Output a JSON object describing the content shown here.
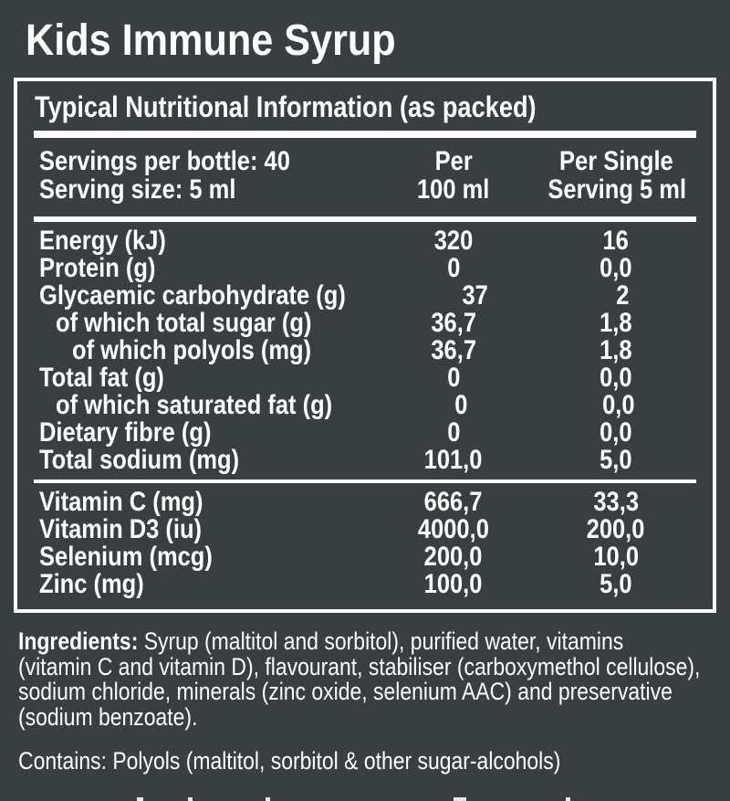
{
  "colors": {
    "background": "#393e41",
    "text": "#fdfdfd"
  },
  "title": "Kids Immune Syrup",
  "panel": {
    "header": "Typical Nutritional Information (as packed)",
    "serving": {
      "left_line1": "Servings per bottle: 40",
      "left_line2": "Serving size: 5 ml",
      "col1_line1": "Per",
      "col1_line2": "100 ml",
      "col2_line1": "Per Single",
      "col2_line2": "Serving 5 ml"
    },
    "nutrient_rows": [
      {
        "label": "Energy (kJ)",
        "per_100ml": "320",
        "per_serving": "16"
      },
      {
        "label": "Protein (g)",
        "per_100ml": "0",
        "per_serving": "0,0"
      },
      {
        "label": "Glycaemic carbohydrate (g)",
        "per_100ml": "37",
        "per_serving": "2"
      },
      {
        "label": "of which total sugar (g)",
        "per_100ml": "36,7",
        "per_serving": "1,8"
      },
      {
        "label": "of which polyols (mg)",
        "per_100ml": "36,7",
        "per_serving": "1,8"
      },
      {
        "label": "Total fat (g)",
        "per_100ml": "0",
        "per_serving": "0,0"
      },
      {
        "label": "of which saturated fat (g)",
        "per_100ml": "0",
        "per_serving": "0,0"
      },
      {
        "label": "Dietary fibre (g)",
        "per_100ml": "0",
        "per_serving": "0,0"
      },
      {
        "label": "Total sodium (mg)",
        "per_100ml": "101,0",
        "per_serving": "5,0"
      }
    ],
    "micronutrient_rows": [
      {
        "label": "Vitamin C (mg)",
        "per_100ml": "666,7",
        "per_serving": "33,3"
      },
      {
        "label": "Vitamin D3 (iu)",
        "per_100ml": "4000,0",
        "per_serving": "200,0"
      },
      {
        "label": "Selenium (mcg)",
        "per_100ml": "200,0",
        "per_serving": "10,0"
      },
      {
        "label": "Zinc (mg)",
        "per_100ml": "100,0",
        "per_serving": "5,0"
      }
    ]
  },
  "ingredients": {
    "prefix": "Ingredients:",
    "text": " Syrup (maltitol and sorbitol), purified water, vitamins\n(vitamin C and vitamin D), flavourant, stabiliser (carboxymethol cellulose),\nsodium chloride, minerals (zinc oxide, selenium AAC) and preservative\n(sodium benzoate)."
  },
  "contains": "Contains: Polyols (maltitol, sorbitol & other sugar-alcohols)"
}
